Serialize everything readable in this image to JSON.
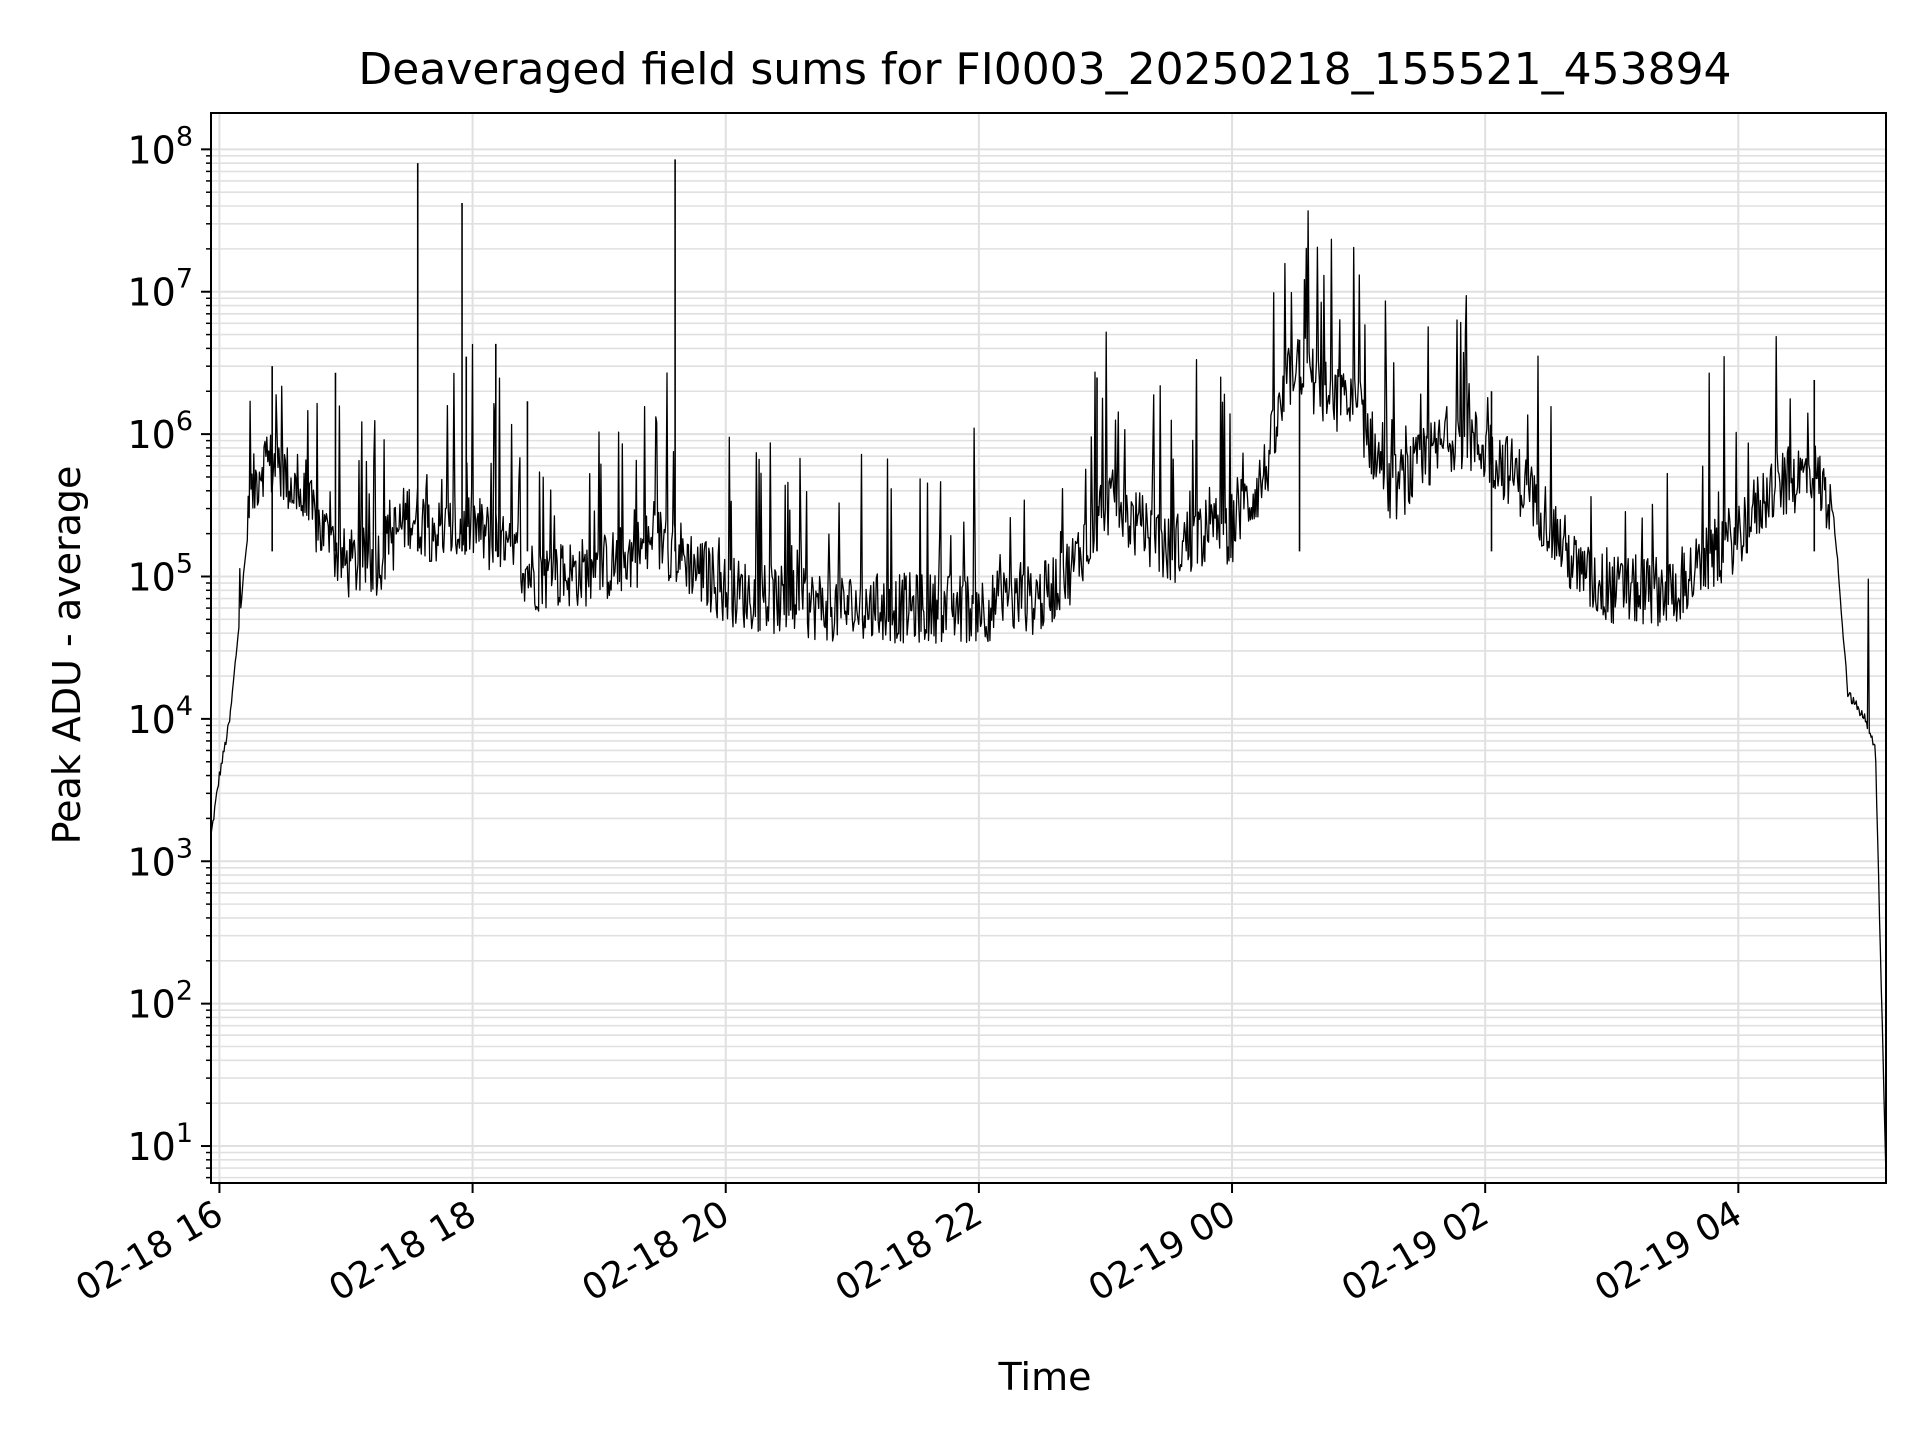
{
  "chart_data": {
    "type": "line",
    "title": "Deaveraged field sums for FI0003_20250218_155521_453894",
    "xlabel": "Time",
    "ylabel": "Peak ADU - average",
    "yscale": "log",
    "ylim": [
      5.5,
      180000000
    ],
    "xlim": [
      "2025-02-18 15:56",
      "2025-02-19 05:10"
    ],
    "grid": true,
    "line_color": "#000000",
    "grid_color": "#e0e0e0",
    "x_ticks": [
      {
        "t": "2025-02-18 16:00",
        "label": "02-18 16"
      },
      {
        "t": "2025-02-18 18:00",
        "label": "02-18 18"
      },
      {
        "t": "2025-02-18 20:00",
        "label": "02-18 20"
      },
      {
        "t": "2025-02-18 22:00",
        "label": "02-18 22"
      },
      {
        "t": "2025-02-19 00:00",
        "label": "02-19 00"
      },
      {
        "t": "2025-02-19 02:00",
        "label": "02-19 02"
      },
      {
        "t": "2025-02-19 04:00",
        "label": "02-19 04"
      }
    ],
    "y_ticks": [
      {
        "value": 10,
        "base": "10",
        "exp": "1"
      },
      {
        "value": 100,
        "base": "10",
        "exp": "2"
      },
      {
        "value": 1000,
        "base": "10",
        "exp": "3"
      },
      {
        "value": 10000,
        "base": "10",
        "exp": "4"
      },
      {
        "value": 100000,
        "base": "10",
        "exp": "5"
      },
      {
        "value": 1000000,
        "base": "10",
        "exp": "6"
      },
      {
        "value": 10000000,
        "base": "10",
        "exp": "7"
      },
      {
        "value": 100000000,
        "base": "10",
        "exp": "8"
      }
    ],
    "series": [
      {
        "name": "",
        "x": [
          "2025-02-18 15:56",
          "2025-02-18 16:00",
          "2025-02-18 16:05",
          "2025-02-18 16:10",
          "2025-02-18 16:15",
          "2025-02-18 16:20",
          "2025-02-18 16:30",
          "2025-02-18 16:45",
          "2025-02-18 17:00",
          "2025-02-18 17:15",
          "2025-02-18 17:30",
          "2025-02-18 17:45",
          "2025-02-18 18:00",
          "2025-02-18 18:30",
          "2025-02-18 19:00",
          "2025-02-18 19:30",
          "2025-02-18 20:00",
          "2025-02-18 20:30",
          "2025-02-18 21:00",
          "2025-02-18 21:30",
          "2025-02-18 22:00",
          "2025-02-18 22:30",
          "2025-02-18 22:45",
          "2025-02-18 23:00",
          "2025-02-18 23:30",
          "2025-02-18 23:45",
          "2025-02-19 00:00",
          "2025-02-19 00:15",
          "2025-02-19 00:30",
          "2025-02-19 00:45",
          "2025-02-19 01:00",
          "2025-02-19 01:15",
          "2025-02-19 01:30",
          "2025-02-19 01:45",
          "2025-02-19 02:00",
          "2025-02-19 02:15",
          "2025-02-19 02:30",
          "2025-02-19 02:45",
          "2025-02-19 03:00",
          "2025-02-19 03:30",
          "2025-02-19 04:00",
          "2025-02-19 04:15",
          "2025-02-19 04:35",
          "2025-02-19 04:45",
          "2025-02-19 04:52",
          "2025-02-19 05:00",
          "2025-02-19 05:05",
          "2025-02-19 05:10"
        ],
        "y": [
          1500,
          4000,
          10000,
          60000,
          350000,
          650000,
          550000,
          250000,
          120000,
          130000,
          280000,
          200000,
          230000,
          100000,
          110000,
          180000,
          80000,
          65000,
          60000,
          60000,
          60000,
          70000,
          120000,
          350000,
          150000,
          200000,
          220000,
          500000,
          3500000,
          1800000,
          1500000,
          400000,
          600000,
          1000000,
          800000,
          500000,
          250000,
          100000,
          80000,
          80000,
          200000,
          400000,
          550000,
          300000,
          15000,
          10000,
          6000,
          6
        ]
      }
    ],
    "spikes": [
      {
        "t": "2025-02-18 16:25",
        "value": 3000000
      },
      {
        "t": "2025-02-18 16:55",
        "value": 2700000
      },
      {
        "t": "2025-02-18 17:34",
        "value": 80000000
      },
      {
        "t": "2025-02-18 17:55",
        "value": 42000000
      },
      {
        "t": "2025-02-18 17:57",
        "value": 3500000
      },
      {
        "t": "2025-02-18 18:11",
        "value": 4300000
      },
      {
        "t": "2025-02-18 18:26",
        "value": 1700000
      },
      {
        "t": "2025-02-18 19:36",
        "value": 85000000
      },
      {
        "t": "2025-02-18 22:56",
        "value": 2500000
      },
      {
        "t": "2025-02-19 00:32",
        "value": 4600000
      },
      {
        "t": "2025-02-19 02:03",
        "value": 2000000
      },
      {
        "t": "2025-02-19 04:36",
        "value": 2400000
      }
    ]
  }
}
